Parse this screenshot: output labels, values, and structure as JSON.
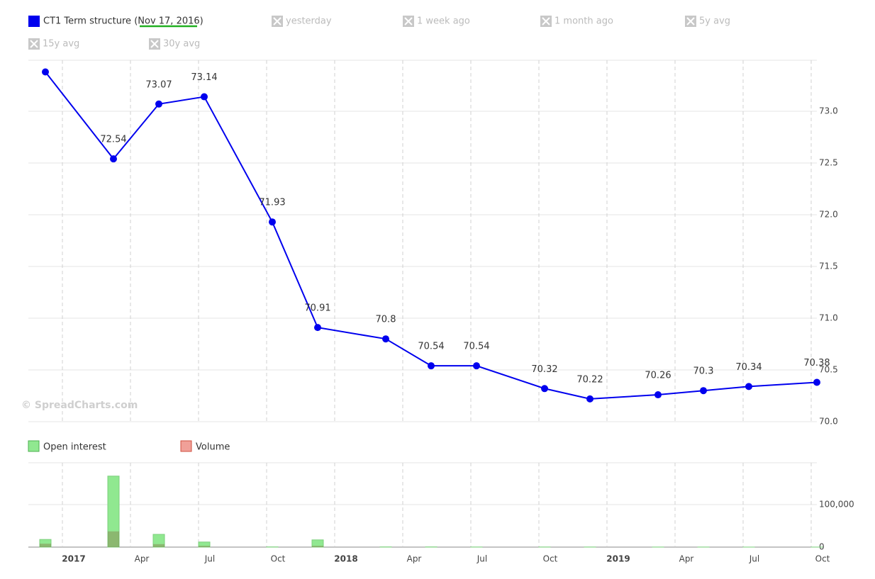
{
  "chart_data": [
    {
      "type": "line",
      "watermark": "© SpreadCharts.com",
      "legend_inactive": [
        "yesterday",
        "1 week ago",
        "1 month ago",
        "5y avg",
        "15y avg",
        "30y avg"
      ],
      "x": [
        "2016-12",
        "2017-03",
        "2017-05",
        "2017-07",
        "2017-10",
        "2017-12",
        "2018-03",
        "2018-05",
        "2018-07",
        "2018-10",
        "2018-12",
        "2019-03",
        "2019-05",
        "2019-07",
        "2019-10"
      ],
      "xlim": [
        "2016-11",
        "2019-11"
      ],
      "xticks": [
        {
          "value": "2017-01",
          "label": "2017"
        },
        {
          "value": "2017-04",
          "label": "Apr"
        },
        {
          "value": "2017-07",
          "label": "Jul"
        },
        {
          "value": "2017-10",
          "label": "Oct"
        },
        {
          "value": "2018-01",
          "label": "2018"
        },
        {
          "value": "2018-04",
          "label": "Apr"
        },
        {
          "value": "2018-07",
          "label": "Jul"
        },
        {
          "value": "2018-10",
          "label": "Oct"
        },
        {
          "value": "2019-01",
          "label": "2019"
        },
        {
          "value": "2019-04",
          "label": "Apr"
        },
        {
          "value": "2019-07",
          "label": "Jul"
        },
        {
          "value": "2019-10",
          "label": "Oct"
        }
      ],
      "ylim": [
        70,
        73.5
      ],
      "yticks": [
        {
          "value": 70,
          "label": "70.0"
        },
        70.5,
        {
          "value": 71,
          "label": "71.0"
        },
        71.5,
        {
          "value": 72,
          "label": "72.0"
        },
        72.5,
        {
          "value": 73,
          "label": "73.0"
        }
      ],
      "grid": true,
      "series": [
        {
          "name": "CT1 Term structure (Nov 17, 2016)",
          "color": "#0000ee",
          "values": [
            73.38,
            72.54,
            73.07,
            73.14,
            71.93,
            70.91,
            70.8,
            70.54,
            70.54,
            70.32,
            70.22,
            70.26,
            70.3,
            70.34,
            70.38
          ],
          "value_labels": [
            null,
            "72.54",
            "73.07",
            "73.14",
            "71.93",
            "70.91",
            "70.8",
            "70.54",
            "70.54",
            "70.32",
            "70.22",
            "70.26",
            "70.3",
            "70.34",
            "70.38"
          ]
        }
      ]
    },
    {
      "type": "bar",
      "x": [
        "2016-12",
        "2017-03",
        "2017-05",
        "2017-07",
        "2017-10",
        "2017-12",
        "2018-03",
        "2018-05",
        "2018-07",
        "2018-10",
        "2018-12",
        "2019-03",
        "2019-05",
        "2019-07",
        "2019-10"
      ],
      "ylim": [
        0,
        200000
      ],
      "yticks": [
        0,
        {
          "value": 100000,
          "label": "100,000"
        }
      ],
      "series": [
        {
          "name": "Open interest",
          "color": "#90e890",
          "values": [
            18000,
            167000,
            30000,
            12000,
            500,
            17000,
            500,
            500,
            300,
            300,
            300,
            200,
            200,
            100,
            100
          ]
        },
        {
          "name": "Volume",
          "color": "#f0a098",
          "values": [
            8000,
            37000,
            7000,
            3000,
            0,
            3000,
            0,
            0,
            0,
            0,
            0,
            0,
            0,
            0,
            0
          ]
        }
      ]
    }
  ]
}
